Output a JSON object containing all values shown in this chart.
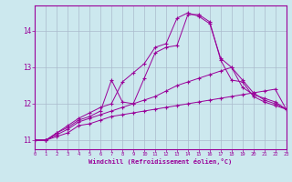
{
  "xlabel": "Windchill (Refroidissement éolien,°C)",
  "bg_color": "#cce8ee",
  "line_color": "#990099",
  "grid_color": "#aabbcc",
  "xmin": 0,
  "xmax": 23,
  "ymin": 10.75,
  "ymax": 14.7,
  "yticks": [
    11,
    12,
    13,
    14
  ],
  "curves": [
    {
      "x": [
        0,
        1,
        2,
        3,
        4,
        5,
        6,
        7,
        8,
        9,
        10,
        11,
        12,
        13,
        14,
        15,
        16,
        17,
        18,
        19,
        20,
        21,
        22,
        23
      ],
      "y": [
        11.0,
        11.0,
        11.1,
        11.2,
        11.4,
        11.45,
        11.55,
        11.65,
        11.7,
        11.75,
        11.8,
        11.85,
        11.9,
        11.95,
        12.0,
        12.05,
        12.1,
        12.15,
        12.2,
        12.25,
        12.3,
        12.35,
        12.4,
        11.85
      ]
    },
    {
      "x": [
        0,
        1,
        2,
        3,
        4,
        5,
        6,
        7,
        8,
        9,
        10,
        11,
        12,
        13,
        14,
        15,
        16,
        17,
        18,
        19,
        20,
        21,
        22,
        23
      ],
      "y": [
        11.0,
        11.0,
        11.15,
        11.3,
        11.5,
        11.6,
        11.7,
        11.8,
        11.9,
        12.0,
        12.1,
        12.2,
        12.35,
        12.5,
        12.6,
        12.7,
        12.8,
        12.9,
        13.0,
        12.45,
        12.25,
        12.15,
        12.05,
        11.85
      ]
    },
    {
      "x": [
        0,
        1,
        2,
        3,
        4,
        5,
        6,
        7,
        8,
        9,
        10,
        11,
        12,
        13,
        14,
        15,
        16,
        17,
        18,
        19,
        20,
        21,
        22,
        23
      ],
      "y": [
        11.0,
        11.0,
        11.2,
        11.35,
        11.55,
        11.65,
        11.8,
        12.65,
        12.05,
        12.0,
        12.7,
        13.4,
        13.55,
        13.6,
        14.45,
        14.45,
        14.25,
        13.2,
        12.65,
        12.6,
        12.2,
        12.05,
        11.95,
        11.85
      ]
    },
    {
      "x": [
        0,
        1,
        2,
        3,
        4,
        5,
        6,
        7,
        8,
        9,
        10,
        11,
        12,
        13,
        14,
        15,
        16,
        17,
        18,
        19,
        20,
        21,
        22,
        23
      ],
      "y": [
        11.0,
        11.0,
        11.2,
        11.4,
        11.6,
        11.75,
        11.9,
        12.0,
        12.6,
        12.85,
        13.1,
        13.55,
        13.65,
        14.35,
        14.5,
        14.4,
        14.2,
        13.25,
        13.0,
        12.65,
        12.3,
        12.1,
        12.0,
        11.85
      ]
    }
  ],
  "ytick_labels": [
    "11",
    "12",
    "13",
    "14"
  ]
}
